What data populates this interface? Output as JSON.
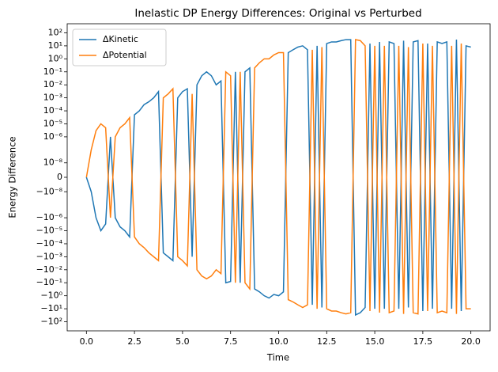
{
  "chart_data": {
    "type": "line",
    "title": "Inelastic DP Energy Differences: Original vs Perturbed",
    "xlabel": "Time",
    "ylabel": "Energy Difference",
    "yscale": "symlog",
    "linthresh": 1e-08,
    "xlim": [
      -1,
      21
    ],
    "xticks": [
      {
        "value": 0,
        "label": "0.0"
      },
      2.5,
      {
        "value": 5,
        "label": "5.0"
      },
      7.5,
      {
        "value": 10,
        "label": "10.0"
      },
      12.5,
      {
        "value": 15,
        "label": "15.0"
      },
      17.5,
      {
        "value": 20,
        "label": "20.0"
      }
    ],
    "ylim": [
      -500,
      500
    ],
    "yticks": [
      {
        "value": 100,
        "label": "10²"
      },
      {
        "value": 10,
        "label": "10¹"
      },
      {
        "value": 1,
        "label": "10⁰"
      },
      {
        "value": 0.1,
        "label": "10⁻¹"
      },
      {
        "value": 0.01,
        "label": "10⁻²"
      },
      {
        "value": 0.001,
        "label": "10⁻³"
      },
      {
        "value": 0.0001,
        "label": "10⁻⁴"
      },
      {
        "value": 1e-05,
        "label": "10⁻⁵"
      },
      {
        "value": 1e-06,
        "label": "10⁻⁶"
      },
      {
        "value": 1e-08,
        "label": "10⁻⁸"
      },
      0,
      {
        "value": -1e-08,
        "label": "−10⁻⁸"
      },
      {
        "value": -1e-06,
        "label": "−10⁻⁶"
      },
      {
        "value": -1e-05,
        "label": "−10⁻⁵"
      },
      {
        "value": -0.0001,
        "label": "−10⁻⁴"
      },
      {
        "value": -0.001,
        "label": "−10⁻³"
      },
      {
        "value": -0.01,
        "label": "−10⁻²"
      },
      {
        "value": -0.1,
        "label": "−10⁻¹"
      },
      {
        "value": -1,
        "label": "−10⁰"
      },
      {
        "value": -10,
        "label": "−10¹"
      },
      {
        "value": -100,
        "label": "−10²"
      }
    ],
    "legend": "upper left",
    "x": [
      0,
      0.25,
      0.5,
      0.75,
      1,
      1.25,
      1.5,
      1.75,
      2,
      2.25,
      2.5,
      2.75,
      3,
      3.25,
      3.5,
      3.75,
      4,
      4.25,
      4.5,
      4.75,
      5,
      5.25,
      5.5,
      5.75,
      6,
      6.25,
      6.5,
      6.75,
      7,
      7.25,
      7.5,
      7.75,
      8,
      8.25,
      8.5,
      8.75,
      9,
      9.25,
      9.5,
      9.75,
      10,
      10.25,
      10.5,
      10.75,
      11,
      11.25,
      11.5,
      11.75,
      12,
      12.25,
      12.5,
      12.75,
      13,
      13.25,
      13.5,
      13.75,
      14,
      14.25,
      14.5,
      14.75,
      15,
      15.25,
      15.5,
      15.75,
      16,
      16.25,
      16.5,
      16.75,
      17,
      17.25,
      17.5,
      17.75,
      18,
      18.25,
      18.5,
      18.75,
      19,
      19.25,
      19.5,
      19.75,
      20
    ],
    "series": [
      {
        "name": "ΔKinetic",
        "color": "#1f77b4",
        "values": [
          0,
          -1e-08,
          -1e-06,
          -1e-05,
          -3e-06,
          1e-06,
          -1e-06,
          -5e-06,
          -1e-05,
          -3e-05,
          5e-05,
          0.0001,
          0.0003,
          0.0005,
          0.001,
          0.003,
          -0.0005,
          -0.001,
          -0.002,
          0.001,
          0.003,
          0.005,
          -0.001,
          0.01,
          0.05,
          0.1,
          0.05,
          0.01,
          0.02,
          -0.1,
          -0.08,
          0.1,
          -0.1,
          0.1,
          0.2,
          -0.3,
          -0.5,
          -1,
          -1.5,
          -0.8,
          -1,
          -0.5,
          3,
          5,
          8,
          10,
          5,
          -5,
          10,
          -8,
          15,
          20,
          20,
          25,
          30,
          30,
          -30,
          -20,
          -8,
          15,
          -10,
          20,
          -10,
          20,
          15,
          -10,
          25,
          -8,
          20,
          25,
          -15,
          15,
          -10,
          20,
          15,
          20,
          -10,
          30,
          -15,
          10,
          8
        ]
      },
      {
        "name": "ΔPotential",
        "color": "#ff7f0e",
        "values": [
          0,
          1e-07,
          3e-06,
          1e-05,
          5e-06,
          -1e-06,
          1e-06,
          5e-06,
          1e-05,
          3e-05,
          -3e-05,
          -0.0001,
          -0.0002,
          -0.0005,
          -0.001,
          -0.002,
          0.001,
          0.002,
          0.005,
          -0.001,
          -0.002,
          -0.005,
          0.002,
          -0.01,
          -0.03,
          -0.05,
          -0.03,
          -0.01,
          -0.02,
          0.1,
          0.05,
          -0.1,
          0.1,
          -0.1,
          -0.3,
          0.2,
          0.5,
          1,
          1,
          2,
          3,
          3,
          -2,
          -3,
          -5,
          -8,
          -5,
          5,
          -10,
          8,
          -10,
          -15,
          -15,
          -20,
          -25,
          -20,
          30,
          25,
          10,
          -15,
          10,
          -20,
          10,
          -20,
          -15,
          10,
          -25,
          8,
          -20,
          -25,
          15,
          -15,
          10,
          -20,
          -15,
          -20,
          10,
          -25,
          15,
          -10,
          -10
        ]
      }
    ]
  }
}
